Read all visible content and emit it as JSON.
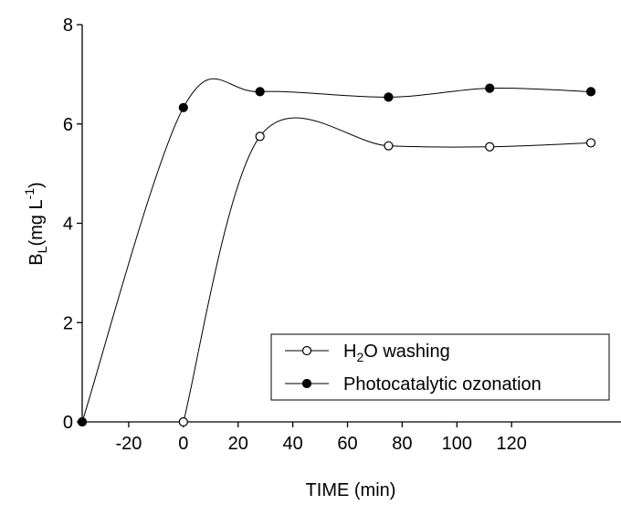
{
  "chart_data": {
    "type": "line",
    "x_label": "TIME (min)",
    "y_label": [
      "B",
      "L",
      "(mg L",
      "-1",
      ")"
    ],
    "series": [
      {
        "name": [
          "H",
          "2",
          "O washing"
        ],
        "marker": "open",
        "color": "#000000",
        "x": [
          0,
          28,
          75,
          112,
          149
        ],
        "values": [
          0,
          5.75,
          5.56,
          5.54,
          5.62
        ]
      },
      {
        "name": [
          "Photocatalytic ozonation"
        ],
        "marker": "filled",
        "color": "#000000",
        "x": [
          -37,
          0,
          28,
          75,
          112,
          149
        ],
        "values": [
          0,
          6.33,
          6.65,
          6.54,
          6.72,
          6.65
        ]
      }
    ],
    "xlim": [
      -37,
      160
    ],
    "xticks": [
      -20,
      0,
      20,
      40,
      60,
      80,
      100,
      120
    ],
    "ylim": [
      0,
      8
    ],
    "yticks": [
      0,
      2,
      4,
      6,
      8
    ],
    "legend": "lower right",
    "grid": false
  }
}
